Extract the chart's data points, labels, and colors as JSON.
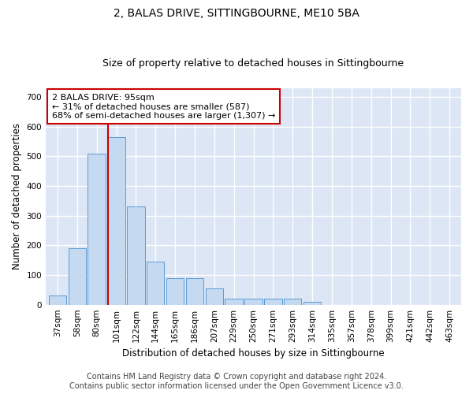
{
  "title": "2, BALAS DRIVE, SITTINGBOURNE, ME10 5BA",
  "subtitle": "Size of property relative to detached houses in Sittingbourne",
  "xlabel": "Distribution of detached houses by size in Sittingbourne",
  "ylabel": "Number of detached properties",
  "footer_line1": "Contains HM Land Registry data © Crown copyright and database right 2024.",
  "footer_line2": "Contains public sector information licensed under the Open Government Licence v3.0.",
  "categories": [
    "37sqm",
    "58sqm",
    "80sqm",
    "101sqm",
    "122sqm",
    "144sqm",
    "165sqm",
    "186sqm",
    "207sqm",
    "229sqm",
    "250sqm",
    "271sqm",
    "293sqm",
    "314sqm",
    "335sqm",
    "357sqm",
    "378sqm",
    "399sqm",
    "421sqm",
    "442sqm",
    "463sqm"
  ],
  "values": [
    30,
    190,
    510,
    565,
    330,
    145,
    90,
    90,
    55,
    20,
    20,
    20,
    20,
    10,
    0,
    0,
    0,
    0,
    0,
    0,
    0
  ],
  "bar_color": "#c5d9f1",
  "bar_edge_color": "#5b9bd5",
  "vline_color": "#cc0000",
  "vline_pos": 2.57,
  "annotation_text": "2 BALAS DRIVE: 95sqm\n← 31% of detached houses are smaller (587)\n68% of semi-detached houses are larger (1,307) →",
  "annotation_box_color": "#ffffff",
  "annotation_box_edge": "#cc0000",
  "ylim": [
    0,
    730
  ],
  "yticks": [
    0,
    100,
    200,
    300,
    400,
    500,
    600,
    700
  ],
  "background_color": "#dce6f5",
  "grid_color": "#ffffff",
  "fig_background": "#ffffff",
  "title_fontsize": 10,
  "subtitle_fontsize": 9,
  "axis_label_fontsize": 8.5,
  "tick_fontsize": 7.5,
  "footer_fontsize": 7
}
